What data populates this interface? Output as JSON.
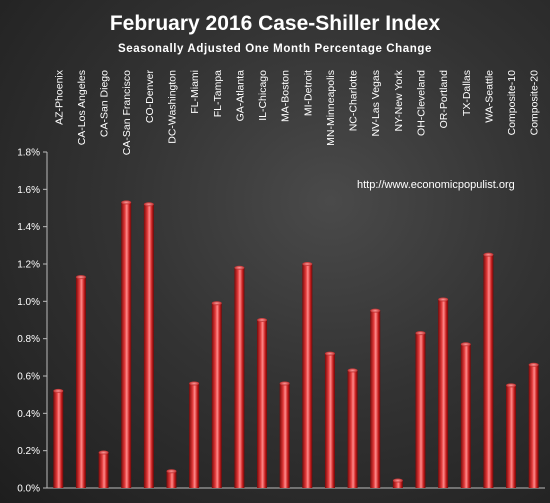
{
  "chart_data": {
    "type": "bar",
    "title": "February 2016 Case-Shiller Index",
    "subtitle": "Seasonally Adjusted One Month Percentage Change",
    "annotation": "http://www.economicpopulist.org",
    "categories": [
      "AZ-Phoenix",
      "CA-Los Angeles",
      "CA-San Diego",
      "CA-San Francisco",
      "CO-Denver",
      "DC-Washington",
      "FL-Miami",
      "FL-Tampa",
      "GA-Atlanta",
      "IL-Chicago",
      "MA-Boston",
      "MI-Detroit",
      "MN-Minneapolis",
      "NC-Charlotte",
      "NV-Las Vegas",
      "NY-New York",
      "OH-Cleveland",
      "OR-Portland",
      "TX-Dallas",
      "WA-Seattle",
      "Composite-10",
      "Composite-20"
    ],
    "values": [
      0.52,
      1.13,
      0.19,
      1.53,
      1.52,
      0.09,
      0.56,
      0.99,
      1.18,
      0.9,
      0.56,
      1.2,
      0.72,
      0.63,
      0.95,
      0.04,
      0.83,
      1.01,
      0.77,
      1.25,
      0.55,
      0.66
    ],
    "ylim": [
      0,
      1.8
    ],
    "yticks": [
      0.0,
      0.2,
      0.4,
      0.6,
      0.8,
      1.0,
      1.2,
      1.4,
      1.6,
      1.8
    ],
    "ytick_labels": [
      "0.0%",
      "0.2%",
      "0.4%",
      "0.6%",
      "0.8%",
      "1.0%",
      "1.2%",
      "1.4%",
      "1.6%",
      "1.8%"
    ],
    "grid": false,
    "colors": {
      "bar_dark": "#7a0a0a",
      "bar_mid": "#e23a3a",
      "bar_light": "#ff8a8a",
      "axis": "#bbbbbb",
      "text": "#ffffff"
    }
  }
}
